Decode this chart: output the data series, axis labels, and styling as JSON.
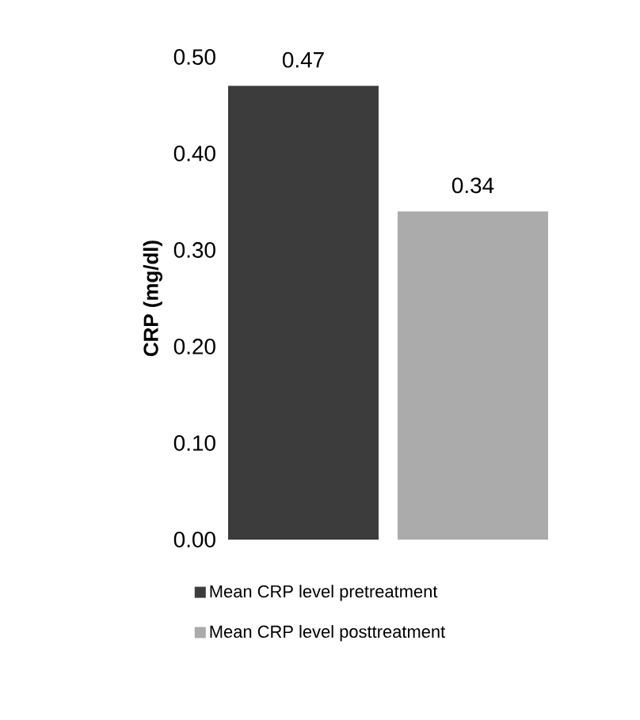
{
  "chart_data": {
    "type": "bar",
    "ylabel": "CRP (mg/dl)",
    "categories": [
      null
    ],
    "series": [
      {
        "name": "Mean CRP level pretreatment",
        "color": "#3c3c3c",
        "values": [
          0.47
        ]
      },
      {
        "name": "Mean CRP level posttreatment",
        "color": "#ababab",
        "values": [
          0.34
        ]
      }
    ],
    "ylim": [
      0,
      0.5
    ],
    "yticks": [
      {
        "value": 0,
        "label": "0.00"
      },
      {
        "value": 0.1,
        "label": "0.10"
      },
      {
        "value": 0.2,
        "label": "0.20"
      },
      {
        "value": 0.3,
        "label": "0.30"
      },
      {
        "value": 0.4,
        "label": "0.40"
      },
      {
        "value": 0.5,
        "label": "0.50"
      }
    ],
    "data_labels": true,
    "legend": "bottom",
    "grid": false
  }
}
